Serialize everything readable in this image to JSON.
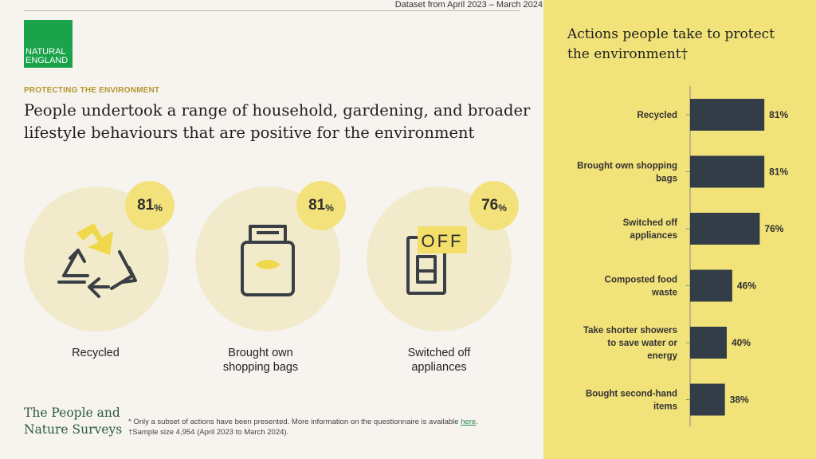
{
  "header": {
    "dataset_note": "Dataset from April 2023 – March 2024"
  },
  "logo": {
    "line1": "NATURAL",
    "line2": "ENGLAND"
  },
  "section": {
    "eyebrow": "PROTECTING THE ENVIRONMENT",
    "headline": "People undertook a range of household, gardening, and broader lifestyle behaviours that are positive for the environment"
  },
  "highlights": [
    {
      "value": "81",
      "unit": "%",
      "label_line1": "Recycled",
      "label_line2": "",
      "icon": "recycle-icon"
    },
    {
      "value": "81",
      "unit": "%",
      "label_line1": "Brought own",
      "label_line2": "shopping bags",
      "icon": "shopping-bag-icon"
    },
    {
      "value": "76",
      "unit": "%",
      "label_line1": "Switched off",
      "label_line2": "appliances",
      "icon": "switch-off-icon",
      "icon_text": "OFF"
    }
  ],
  "footer": {
    "brand_line1": "The People and",
    "brand_line2": "Nature Surveys",
    "note1_prefix": "* Only a subset of actions have been presented. More information on the questionnaire is available ",
    "note1_link": "here",
    "note1_suffix": ".",
    "note2": "†Sample size 4,954 (April 2023 to March 2024)."
  },
  "colors": {
    "accent_yellow": "#f2e27a",
    "bar": "#333d47",
    "logo_green": "#1aa34a",
    "circle_bg": "#f1ebcc"
  },
  "chart_data": {
    "type": "bar",
    "orientation": "horizontal",
    "title": "Actions people take to protect the environment†",
    "categories": [
      [
        "Recycled"
      ],
      [
        "Brought own shopping",
        "bags"
      ],
      [
        "Switched off",
        "appliances"
      ],
      [
        "Composted food",
        "waste"
      ],
      [
        "Take shorter showers",
        "to save water or",
        "energy"
      ],
      [
        "Bought second-hand",
        "items"
      ]
    ],
    "values": [
      81,
      81,
      76,
      46,
      40,
      38
    ],
    "value_labels": [
      "81%",
      "81%",
      "76%",
      "46%",
      "40%",
      "38%"
    ],
    "xlim": [
      0,
      100
    ],
    "grid": false
  }
}
